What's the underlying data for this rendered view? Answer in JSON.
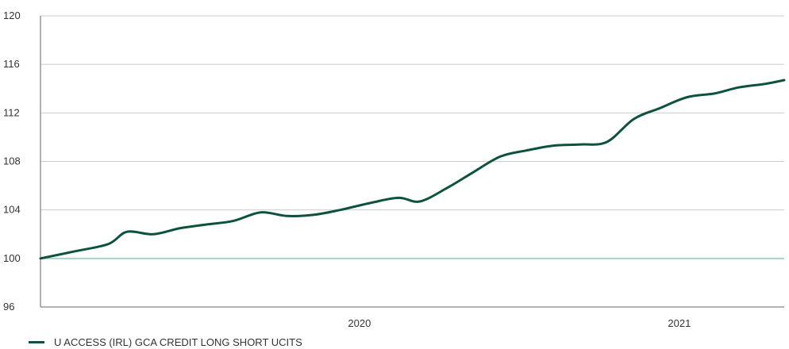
{
  "chart_data": {
    "type": "line",
    "title": "",
    "xlabel": "",
    "ylabel": "",
    "xlim": [
      "2019-01-01",
      "2021-05-01"
    ],
    "ylim": [
      96,
      120
    ],
    "yticks": [
      96,
      100,
      104,
      108,
      112,
      116,
      120
    ],
    "ytick_labels": [
      "96",
      "100",
      "104",
      "108",
      "112",
      "116",
      "120"
    ],
    "xticks": [
      "2020-01-01",
      "2021-01-01"
    ],
    "xtick_labels": [
      "2020",
      "2021"
    ],
    "grid": "horizontal",
    "legend_position": "bottom-left",
    "reference_line": 100,
    "series": [
      {
        "name": "U ACCESS (IRL) GCA CREDIT LONG SHORT UCITS",
        "color": "#0d5240",
        "x": [
          "2019-01-01",
          "2019-02-10",
          "2019-03-20",
          "2019-04-10",
          "2019-05-10",
          "2019-06-10",
          "2019-07-10",
          "2019-08-10",
          "2019-09-10",
          "2019-10-10",
          "2019-11-10",
          "2019-12-10",
          "2020-01-15",
          "2020-02-15",
          "2020-03-10",
          "2020-04-10",
          "2020-05-10",
          "2020-06-10",
          "2020-07-10",
          "2020-08-10",
          "2020-09-10",
          "2020-10-10",
          "2020-11-10",
          "2020-12-10",
          "2021-01-10",
          "2021-02-10",
          "2021-03-10",
          "2021-04-10",
          "2021-05-01"
        ],
        "values": [
          100.0,
          100.6,
          101.2,
          102.2,
          102.0,
          102.5,
          102.8,
          103.1,
          103.8,
          103.5,
          103.6,
          104.0,
          104.6,
          105.0,
          104.7,
          105.8,
          107.1,
          108.4,
          108.9,
          109.3,
          109.4,
          109.6,
          111.5,
          112.4,
          113.3,
          113.6,
          114.1,
          114.4,
          114.7
        ]
      }
    ]
  },
  "legend": {
    "label": "U ACCESS (IRL) GCA CREDIT LONG SHORT UCITS"
  },
  "colors": {
    "series": "#0d5240",
    "reference": "#a9d4c4",
    "grid": "#cccccc",
    "axis": "#666666"
  }
}
